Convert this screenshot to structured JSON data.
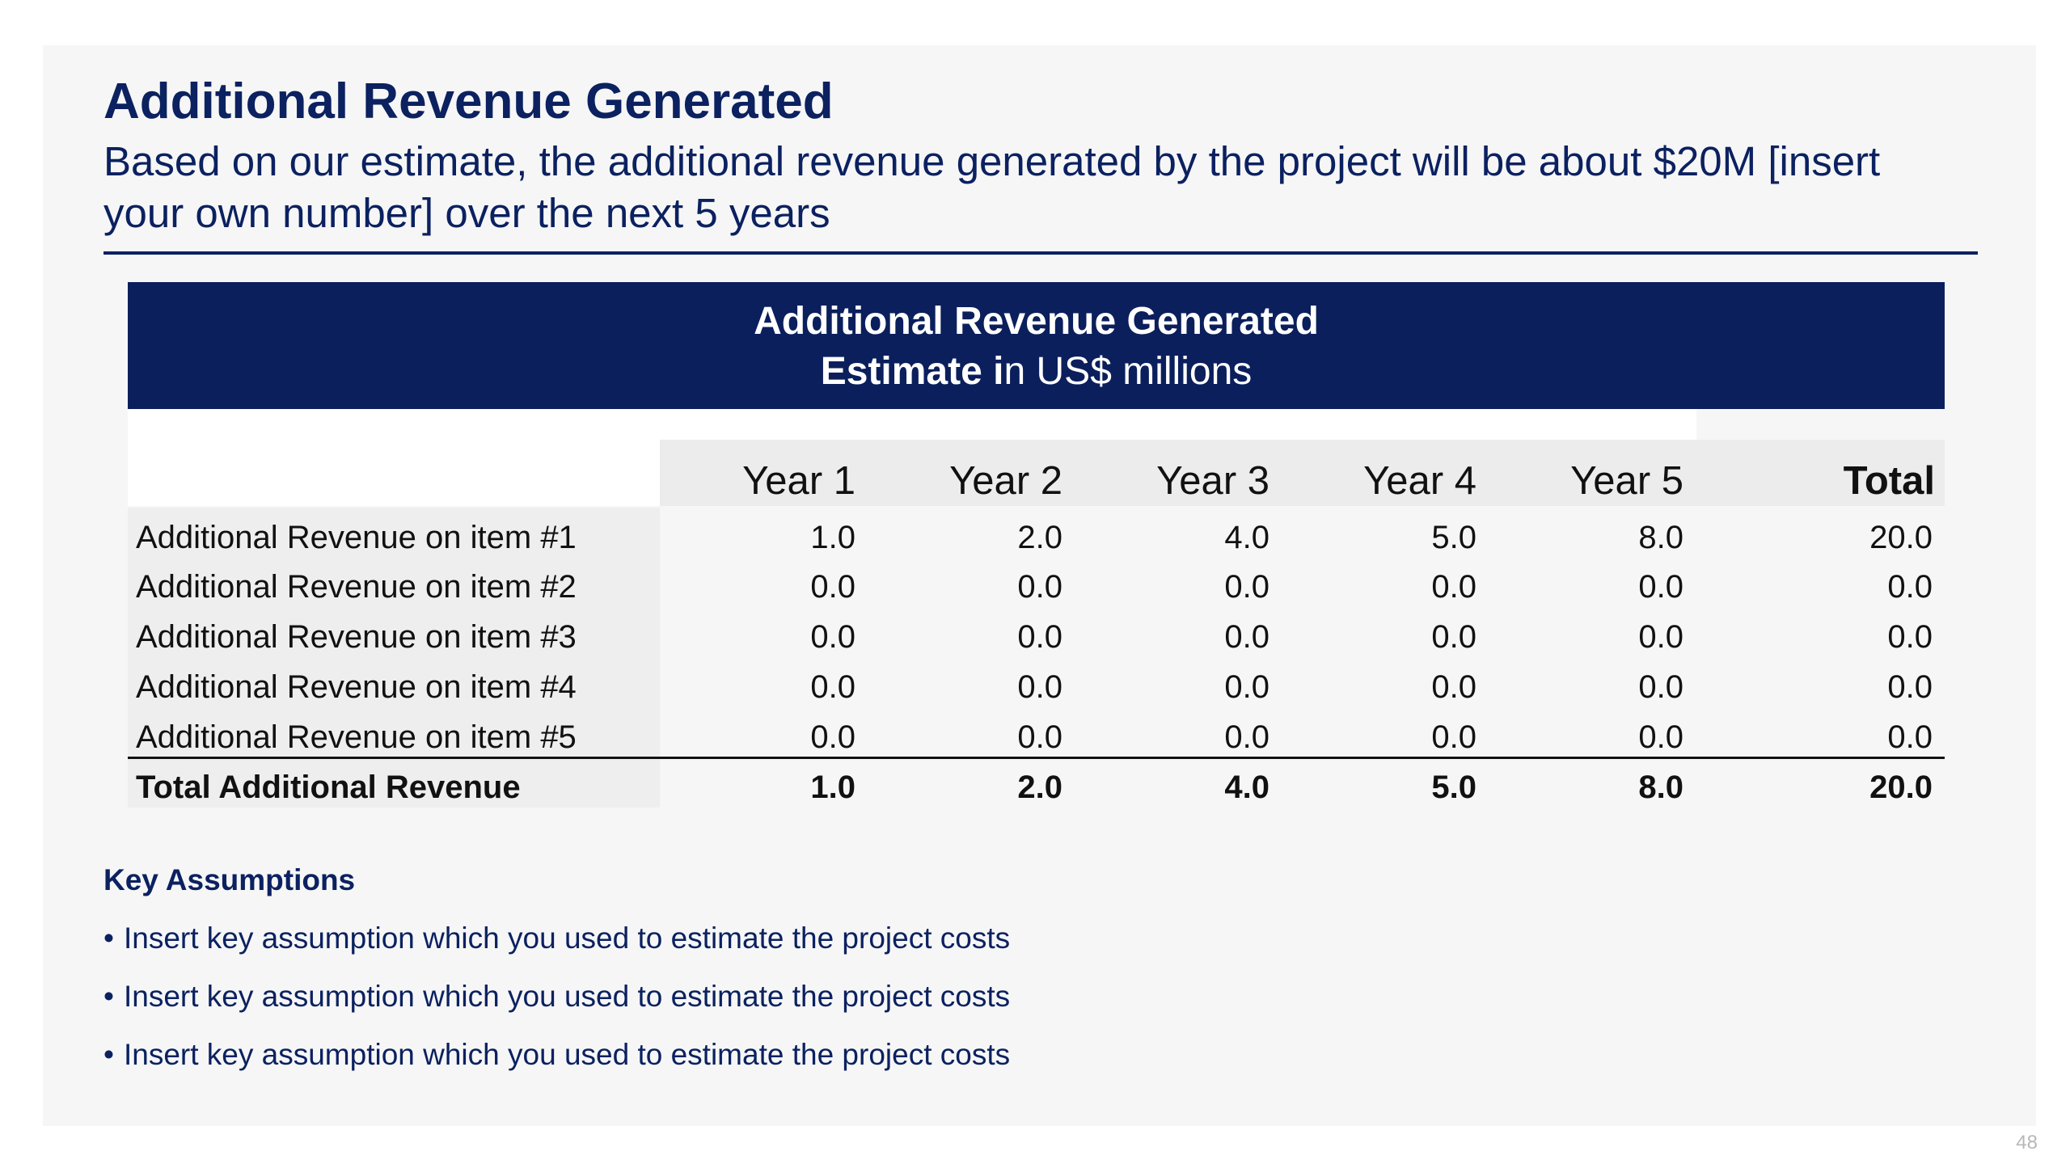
{
  "slide": {
    "title": "Additional Revenue Generated",
    "subtitle": "Based on our estimate, the additional revenue generated by the project will be about $20M [insert your own number] over the next 5 years",
    "page_number": "48"
  },
  "table": {
    "banner_title": "Additional Revenue Generated",
    "banner_subtitle_bold": "Estimate i",
    "banner_subtitle_rest": "n US$ millions",
    "columns": [
      "Year 1",
      "Year 2",
      "Year 3",
      "Year 4",
      "Year 5",
      "Total"
    ],
    "rows": [
      {
        "label": "Additional Revenue on item #1",
        "values": [
          "1.0",
          "2.0",
          "4.0",
          "5.0",
          "8.0",
          "20.0"
        ]
      },
      {
        "label": "Additional Revenue on item #2",
        "values": [
          "0.0",
          "0.0",
          "0.0",
          "0.0",
          "0.0",
          "0.0"
        ]
      },
      {
        "label": "Additional Revenue on item #3",
        "values": [
          "0.0",
          "0.0",
          "0.0",
          "0.0",
          "0.0",
          "0.0"
        ]
      },
      {
        "label": "Additional Revenue on item #4",
        "values": [
          "0.0",
          "0.0",
          "0.0",
          "0.0",
          "0.0",
          "0.0"
        ]
      },
      {
        "label": "Additional Revenue on item #5",
        "values": [
          "0.0",
          "0.0",
          "0.0",
          "0.0",
          "0.0",
          "0.0"
        ]
      }
    ],
    "total_row": {
      "label": "Total Additional Revenue",
      "values": [
        "1.0",
        "2.0",
        "4.0",
        "5.0",
        "8.0",
        "20.0"
      ]
    }
  },
  "assumptions": {
    "heading": "Key Assumptions",
    "items": [
      "Insert key assumption which you used to estimate the project costs",
      "Insert key assumption which you used to estimate the project costs",
      "Insert key assumption which you used to estimate the project costs"
    ]
  },
  "colors": {
    "navy": "#0b2160",
    "banner": "#0b1f5c",
    "slide_bg": "#f6f6f6"
  }
}
